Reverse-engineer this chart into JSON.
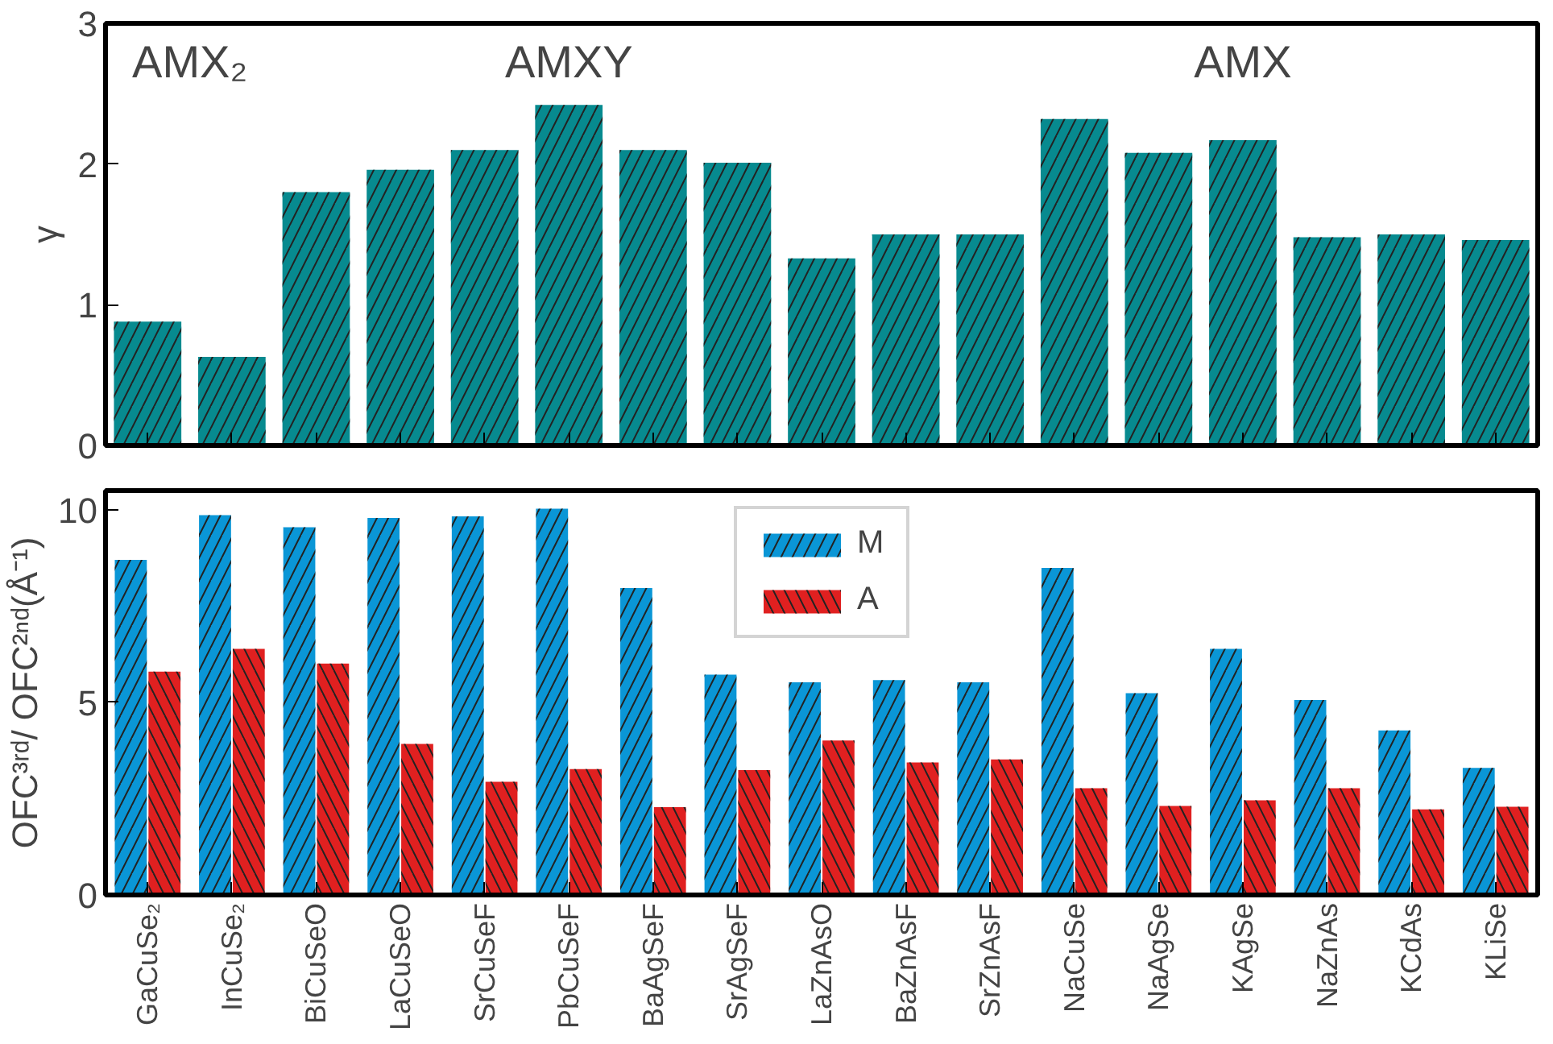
{
  "chart_data": [
    {
      "type": "bar",
      "ylabel": "γ",
      "categories": [
        null,
        null,
        null,
        null,
        null,
        null,
        null,
        null,
        null,
        null,
        null,
        null,
        null,
        null,
        null,
        null,
        null
      ],
      "values": [
        0.88,
        0.63,
        1.8,
        1.96,
        2.1,
        2.42,
        2.1,
        2.01,
        1.33,
        1.5,
        1.5,
        2.32,
        2.08,
        2.17,
        1.48,
        1.5,
        1.46
      ],
      "color": "#078a8f",
      "ylim": [
        0,
        3
      ],
      "yticks": [
        0,
        1,
        2,
        3
      ],
      "tick_labels": "y",
      "grid": false,
      "annotations": [
        "AMX₂",
        "AMXY",
        "AMX"
      ]
    },
    {
      "type": "bar",
      "ylabel": "OFC³ʳᵈ/ OFC²ⁿᵈ(Å⁻¹)",
      "categories": [
        "GaCuSe₂",
        "InCuSe₂",
        "BiCuSeO",
        "LaCuSeO",
        "SrCuSeF",
        "PbCuSeF",
        "BaAgSeF",
        "SrAgSeF",
        "LaZnAsO",
        "BaZnAsF",
        "SrZnAsF",
        "NaCuSe",
        "NaAgSe",
        "KAgSe",
        "NaZnAs",
        "KCdAs",
        "KLiSe"
      ],
      "series": [
        {
          "name": "M",
          "color": "#0a96d6",
          "values": [
            8.7,
            9.86,
            9.55,
            9.79,
            9.83,
            10.03,
            7.97,
            5.72,
            5.52,
            5.58,
            5.52,
            8.49,
            5.24,
            6.39,
            5.06,
            4.27,
            3.3
          ]
        },
        {
          "name": "A",
          "color": "#e02020",
          "values": [
            5.8,
            6.39,
            6.01,
            3.92,
            2.94,
            3.27,
            2.28,
            3.24,
            4.01,
            3.44,
            3.52,
            2.77,
            2.31,
            2.46,
            2.77,
            2.22,
            2.29
          ]
        }
      ],
      "ylim": [
        0,
        10.5
      ],
      "yticks": [
        0,
        5,
        10
      ],
      "legend": "top",
      "grid": false
    }
  ]
}
